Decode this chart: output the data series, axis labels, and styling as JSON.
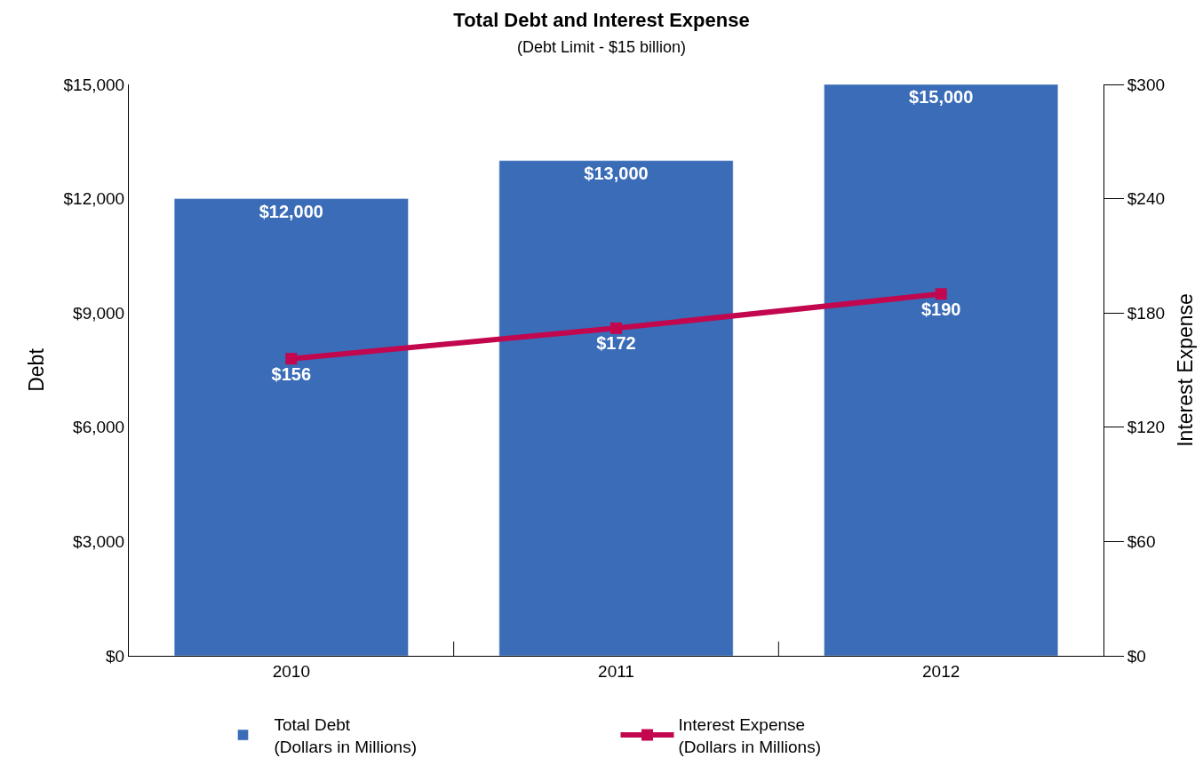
{
  "chart_data": {
    "type": "bar",
    "title": "Total Debt and Interest Expense",
    "subtitle": "(Debt Limit - $15 billion)",
    "ylabel": "Debt",
    "y2label": "Interest Expense",
    "categories": [
      "2010",
      "2011",
      "2012"
    ],
    "series": [
      {
        "name": "Total Debt\n(Dollars in Millions)",
        "color": "#3a6cb7",
        "values": [
          12000,
          13000,
          15000
        ],
        "value_labels": [
          "$12,000",
          "$13,000",
          "$15,000"
        ]
      },
      {
        "name": "Interest Expense\n(Dollars in Millions)",
        "type": "line",
        "axis": "y2",
        "color": "#c2074e",
        "marker": "square",
        "values": [
          156,
          172,
          190
        ],
        "value_labels": [
          "$156",
          "$172",
          "$190"
        ]
      }
    ],
    "ylim": [
      0,
      15000
    ],
    "yticks": [
      {
        "value": 0,
        "label": "$0"
      },
      {
        "value": 3000,
        "label": "$3,000"
      },
      {
        "value": 6000,
        "label": "$6,000"
      },
      {
        "value": 9000,
        "label": "$9,000"
      },
      {
        "value": 12000,
        "label": "$12,000"
      },
      {
        "value": 15000,
        "label": "$15,000"
      }
    ],
    "y2lim": [
      0,
      300
    ],
    "y2ticks": [
      {
        "value": 0,
        "label": "$0"
      },
      {
        "value": 60,
        "label": "$60"
      },
      {
        "value": 120,
        "label": "$120"
      },
      {
        "value": 180,
        "label": "$180"
      },
      {
        "value": 240,
        "label": "$240"
      },
      {
        "value": 300,
        "label": "$300"
      }
    ],
    "legend": "bottom"
  }
}
